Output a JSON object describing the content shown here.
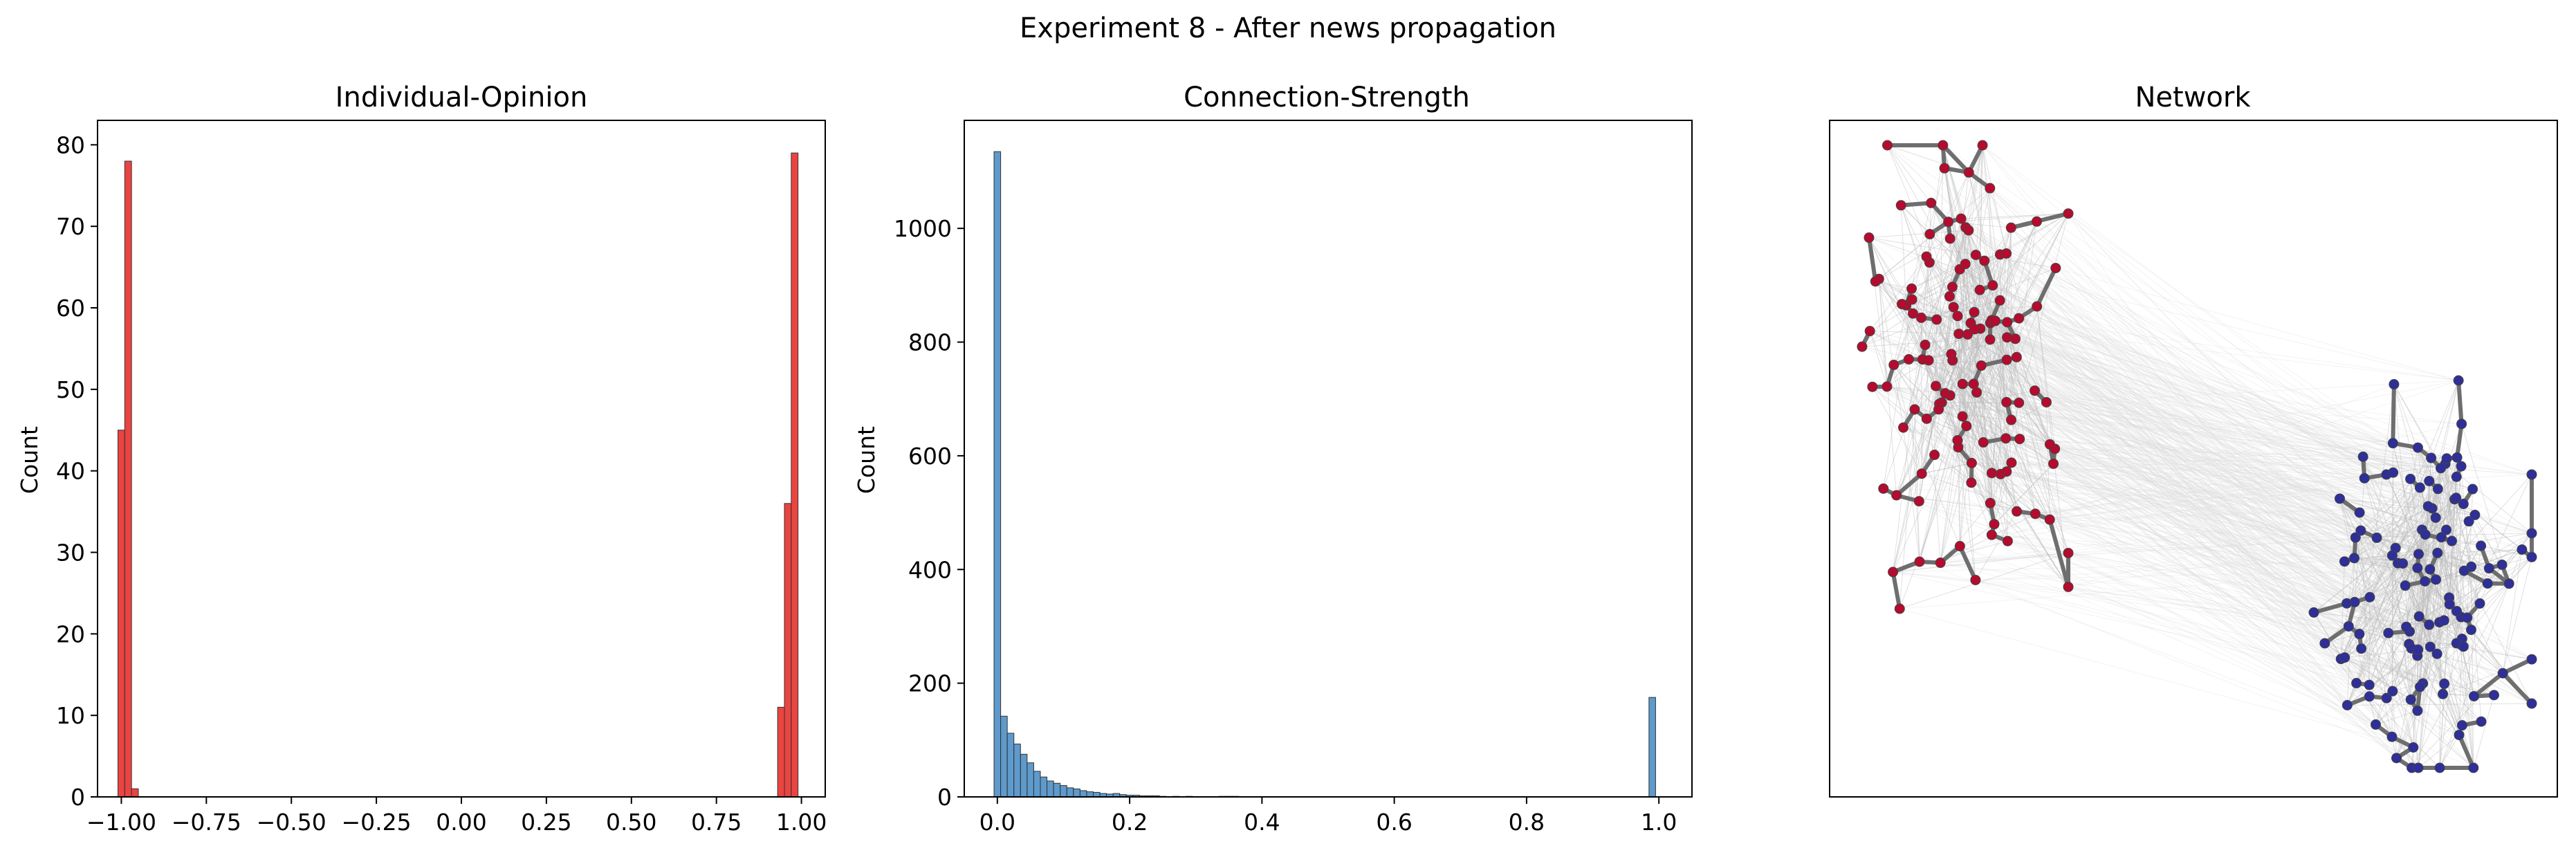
{
  "figure": {
    "suptitle": "Experiment 8 - After news propagation"
  },
  "colors": {
    "opinion_bar": "#e8302c",
    "strength_bar": "#4c8fc6",
    "node_positive": "#b50b2e",
    "node_negative": "#2e2f98",
    "strong_edge": "#6e6e6e",
    "weak_edge": "#dddddd"
  },
  "chart_data": [
    {
      "type": "bar",
      "title": "Individual-Opinion",
      "xlabel": "",
      "ylabel": "Count",
      "xlim": [
        -1.07,
        1.07
      ],
      "ylim": [
        0,
        83
      ],
      "xticks": [
        -1.0,
        -0.75,
        -0.5,
        -0.25,
        0.0,
        0.25,
        0.5,
        0.75,
        1.0
      ],
      "xtick_labels": [
        "−1.00",
        "−0.75",
        "−0.50",
        "−0.25",
        "0.00",
        "0.25",
        "0.50",
        "0.75",
        "1.00"
      ],
      "yticks": [
        0,
        10,
        20,
        30,
        40,
        50,
        60,
        70,
        80
      ],
      "ytick_labels": [
        "0",
        "10",
        "20",
        "30",
        "40",
        "50",
        "60",
        "70",
        "80"
      ],
      "bin_width": 0.02,
      "bins": [
        {
          "x": -1.0,
          "value": 45
        },
        {
          "x": -0.98,
          "value": 78
        },
        {
          "x": -0.96,
          "value": 1
        },
        {
          "x": 0.94,
          "value": 11
        },
        {
          "x": 0.96,
          "value": 36
        },
        {
          "x": 0.98,
          "value": 79
        }
      ]
    },
    {
      "type": "bar",
      "title": "Connection-Strength",
      "xlabel": "",
      "ylabel": "Count",
      "xlim": [
        -0.05,
        1.05
      ],
      "ylim": [
        0,
        1190
      ],
      "xticks": [
        0.0,
        0.2,
        0.4,
        0.6,
        0.8,
        1.0
      ],
      "xtick_labels": [
        "0.0",
        "0.2",
        "0.4",
        "0.6",
        "0.8",
        "1.0"
      ],
      "yticks": [
        0,
        200,
        400,
        600,
        800,
        1000
      ],
      "ytick_labels": [
        "0",
        "200",
        "400",
        "600",
        "800",
        "1000"
      ],
      "bin_width": 0.01,
      "bins": [
        {
          "x": 0.0,
          "value": 1135
        },
        {
          "x": 0.01,
          "value": 142
        },
        {
          "x": 0.02,
          "value": 112
        },
        {
          "x": 0.03,
          "value": 93
        },
        {
          "x": 0.04,
          "value": 75
        },
        {
          "x": 0.05,
          "value": 60
        },
        {
          "x": 0.06,
          "value": 45
        },
        {
          "x": 0.07,
          "value": 35
        },
        {
          "x": 0.08,
          "value": 28
        },
        {
          "x": 0.09,
          "value": 24
        },
        {
          "x": 0.1,
          "value": 20
        },
        {
          "x": 0.11,
          "value": 16
        },
        {
          "x": 0.12,
          "value": 14
        },
        {
          "x": 0.13,
          "value": 11
        },
        {
          "x": 0.14,
          "value": 9
        },
        {
          "x": 0.15,
          "value": 8
        },
        {
          "x": 0.16,
          "value": 6
        },
        {
          "x": 0.17,
          "value": 5
        },
        {
          "x": 0.18,
          "value": 6
        },
        {
          "x": 0.19,
          "value": 4
        },
        {
          "x": 0.2,
          "value": 3
        },
        {
          "x": 0.21,
          "value": 3
        },
        {
          "x": 0.22,
          "value": 2
        },
        {
          "x": 0.23,
          "value": 2
        },
        {
          "x": 0.24,
          "value": 2
        },
        {
          "x": 0.25,
          "value": 1
        },
        {
          "x": 0.27,
          "value": 1
        },
        {
          "x": 0.29,
          "value": 1
        },
        {
          "x": 0.34,
          "value": 1
        },
        {
          "x": 0.35,
          "value": 1
        },
        {
          "x": 0.36,
          "value": 1
        },
        {
          "x": 0.99,
          "value": 175
        }
      ]
    },
    {
      "type": "network",
      "title": "Network",
      "clusters": [
        {
          "group": "positive",
          "color": "#b50b2e",
          "node_count": 125
        },
        {
          "group": "negative",
          "color": "#2e2f98",
          "node_count": 125
        }
      ],
      "grid": false
    }
  ]
}
